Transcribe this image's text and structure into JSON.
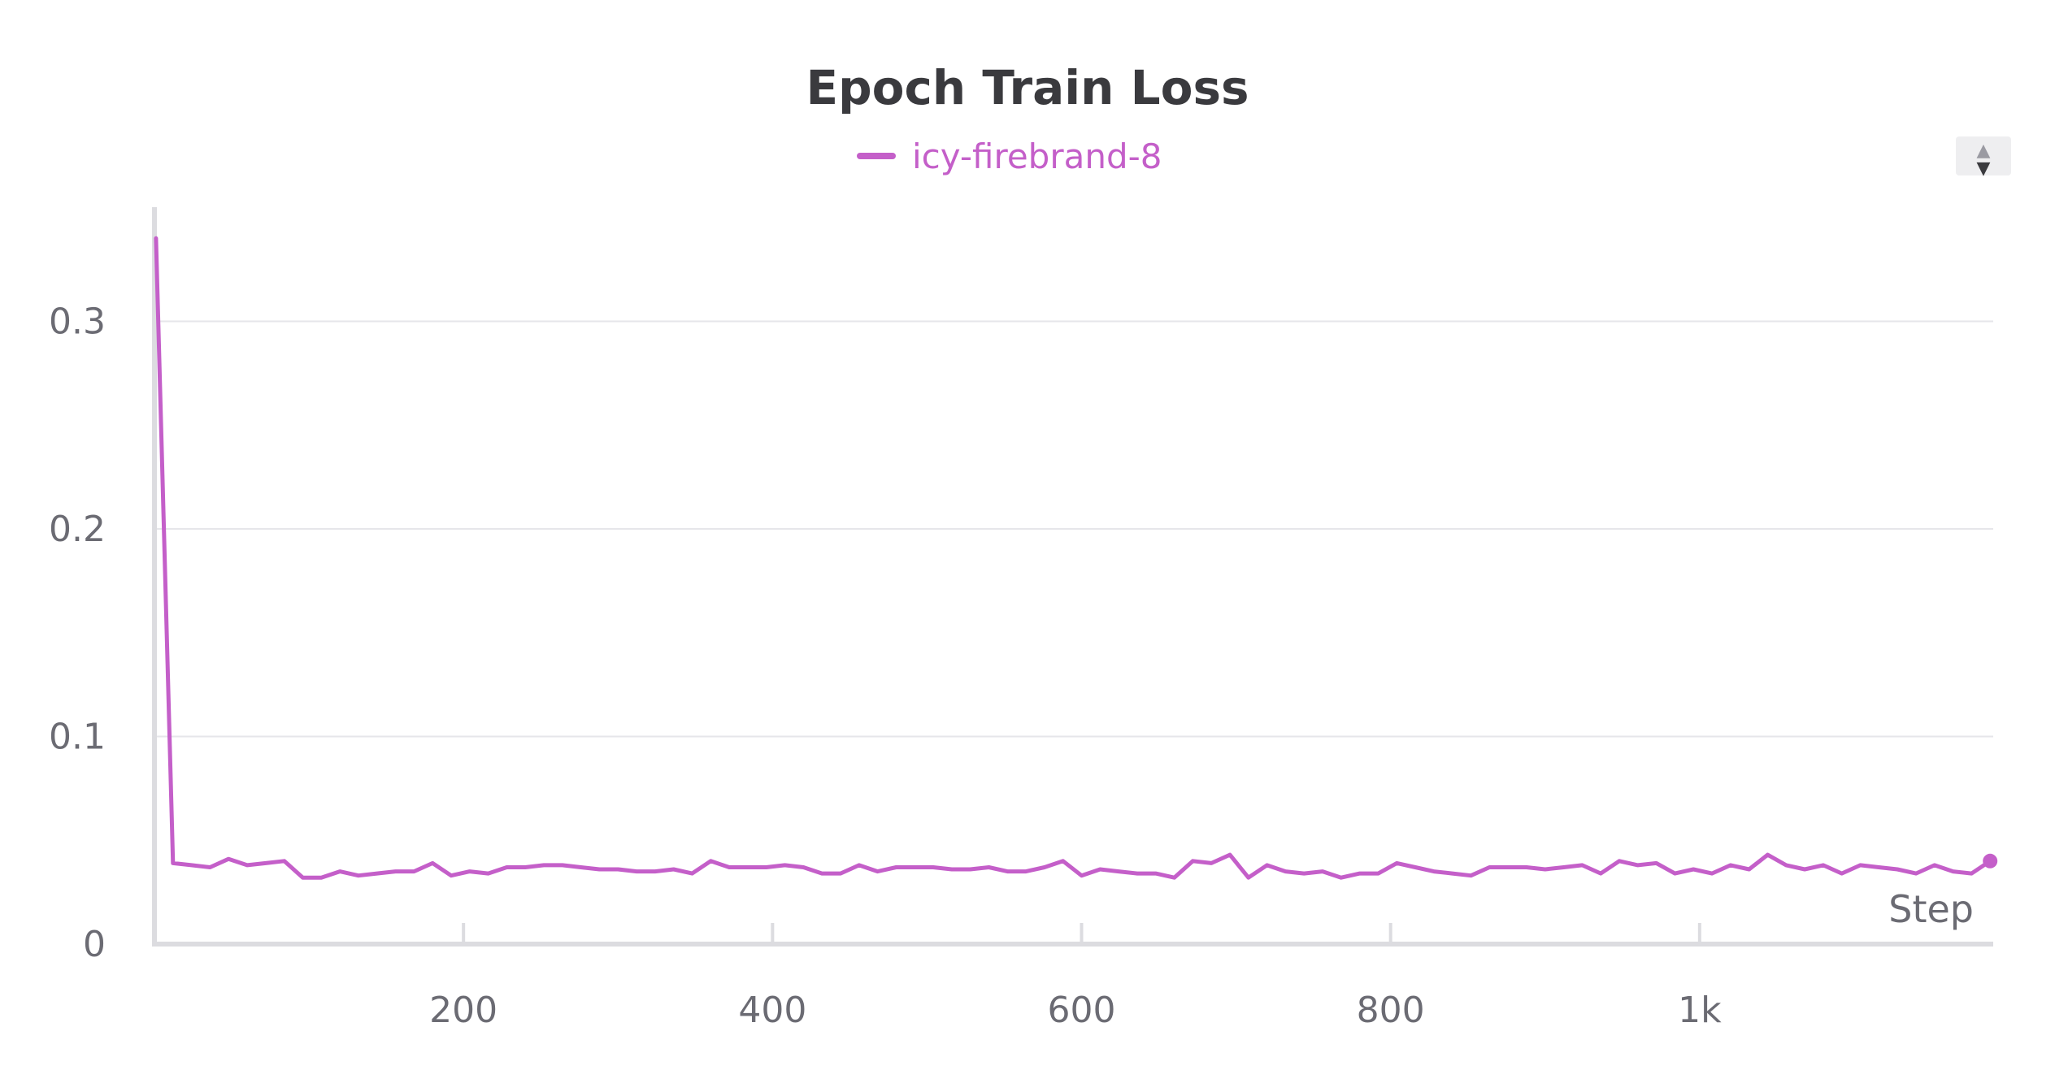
{
  "chart_data": {
    "type": "line",
    "title": "Epoch Train Loss",
    "xlabel": "Step",
    "ylabel": "",
    "xlim": [
      0,
      1190
    ],
    "ylim": [
      0,
      0.355
    ],
    "x_ticks": [
      {
        "value": 200,
        "label": "200"
      },
      {
        "value": 400,
        "label": "400"
      },
      {
        "value": 600,
        "label": "600"
      },
      {
        "value": 800,
        "label": "800"
      },
      {
        "value": 1000,
        "label": "1k"
      }
    ],
    "y_ticks": [
      {
        "value": 0,
        "label": "0"
      },
      {
        "value": 0.1,
        "label": "0.1"
      },
      {
        "value": 0.2,
        "label": "0.2"
      },
      {
        "value": 0.3,
        "label": "0.3"
      }
    ],
    "grid": true,
    "legend_position": "top-center",
    "series": [
      {
        "name": "icy-firebrand-8",
        "color": "#c45fc9",
        "x": [
          1,
          12,
          24,
          36,
          48,
          60,
          72,
          84,
          96,
          108,
          120,
          132,
          144,
          156,
          168,
          180,
          192,
          204,
          216,
          228,
          240,
          252,
          264,
          276,
          288,
          300,
          312,
          324,
          336,
          348,
          360,
          372,
          384,
          396,
          408,
          420,
          432,
          444,
          456,
          468,
          480,
          492,
          504,
          516,
          528,
          540,
          552,
          564,
          576,
          588,
          600,
          612,
          624,
          636,
          648,
          660,
          672,
          684,
          696,
          708,
          720,
          732,
          744,
          756,
          768,
          780,
          792,
          804,
          816,
          828,
          840,
          852,
          864,
          876,
          888,
          900,
          912,
          924,
          936,
          948,
          960,
          972,
          984,
          996,
          1008,
          1020,
          1032,
          1044,
          1056,
          1068,
          1080,
          1092,
          1104,
          1116,
          1128,
          1140,
          1152,
          1164,
          1176,
          1188
        ],
        "values": [
          0.34,
          0.039,
          0.038,
          0.037,
          0.041,
          0.038,
          0.039,
          0.04,
          0.032,
          0.032,
          0.035,
          0.033,
          0.034,
          0.035,
          0.035,
          0.039,
          0.033,
          0.035,
          0.034,
          0.037,
          0.037,
          0.038,
          0.038,
          0.037,
          0.036,
          0.036,
          0.035,
          0.035,
          0.036,
          0.034,
          0.04,
          0.037,
          0.037,
          0.037,
          0.038,
          0.037,
          0.034,
          0.034,
          0.038,
          0.035,
          0.037,
          0.037,
          0.037,
          0.036,
          0.036,
          0.037,
          0.035,
          0.035,
          0.037,
          0.04,
          0.033,
          0.036,
          0.035,
          0.034,
          0.034,
          0.032,
          0.04,
          0.039,
          0.043,
          0.032,
          0.038,
          0.035,
          0.034,
          0.035,
          0.032,
          0.034,
          0.034,
          0.039,
          0.037,
          0.035,
          0.034,
          0.033,
          0.037,
          0.037,
          0.037,
          0.036,
          0.037,
          0.038,
          0.034,
          0.04,
          0.038,
          0.039,
          0.034,
          0.036,
          0.034,
          0.038,
          0.036,
          0.043,
          0.038,
          0.036,
          0.038,
          0.034,
          0.038,
          0.037,
          0.036,
          0.034,
          0.038,
          0.035,
          0.034,
          0.04
        ]
      }
    ]
  },
  "controls": {
    "legend_scroll_up": "▲",
    "legend_scroll_down": "▼"
  }
}
